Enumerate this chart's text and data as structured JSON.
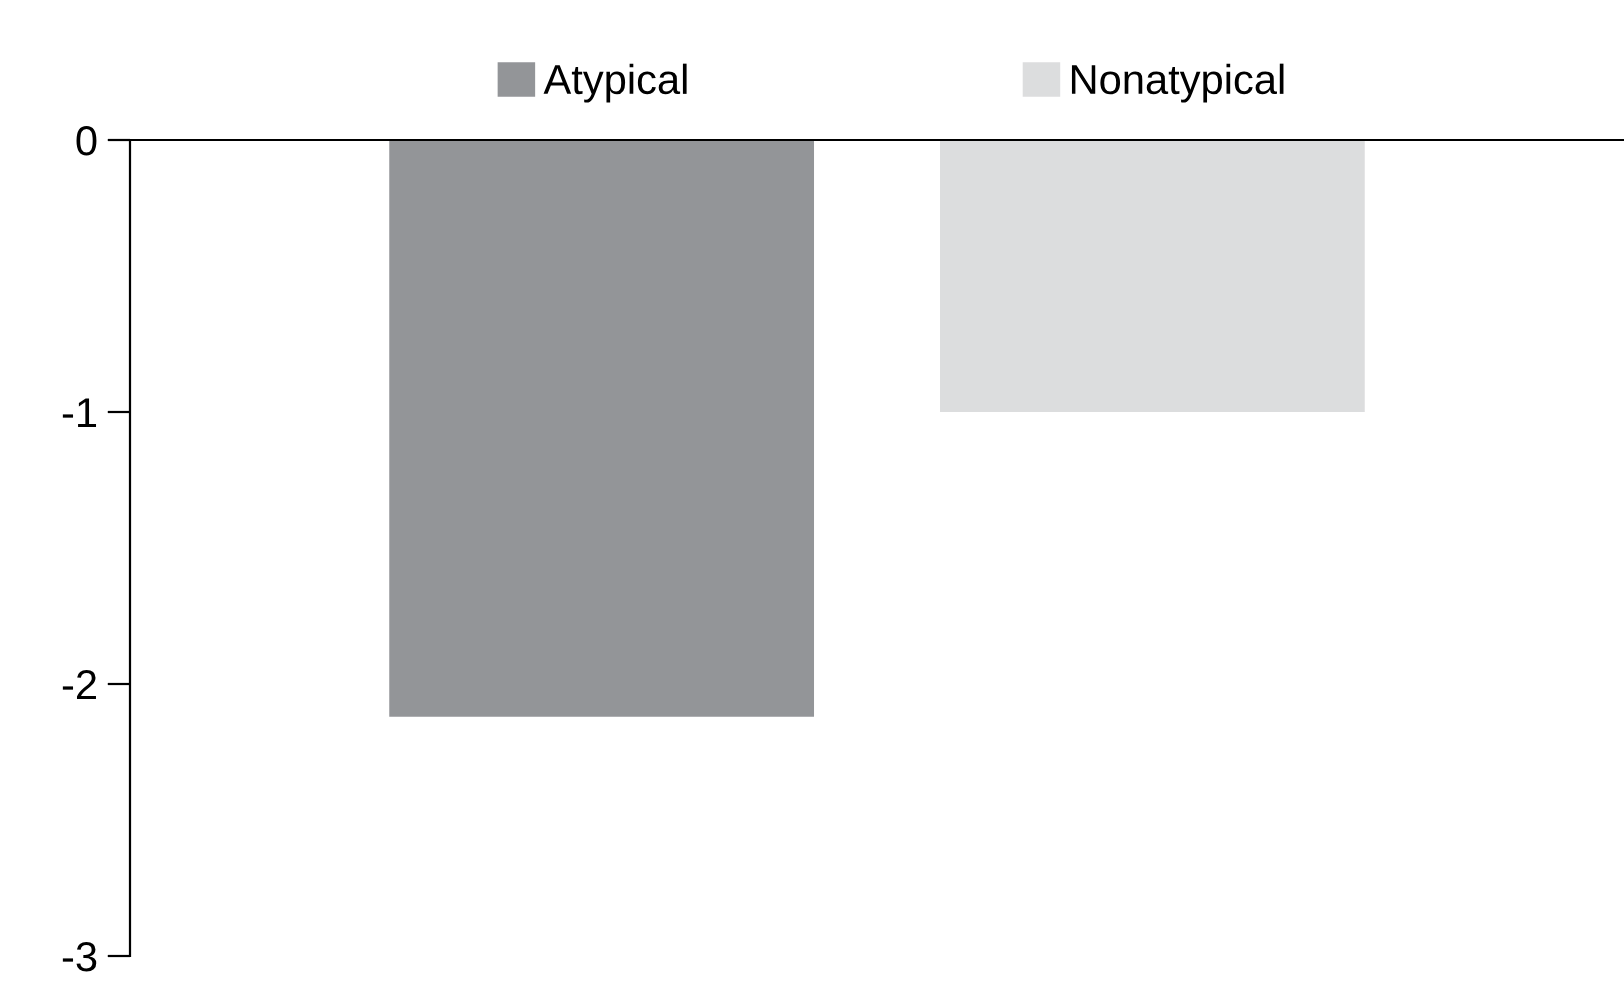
{
  "chart_data": {
    "type": "bar",
    "categories": [
      null
    ],
    "series": [
      {
        "name": "Atypical",
        "color": "#939598",
        "values": [
          -2.12
        ]
      },
      {
        "name": "Nonatypical",
        "color": "#dcddde",
        "values": [
          -1.0
        ]
      }
    ],
    "ylim": [
      -3,
      0
    ],
    "yticks": [
      -3,
      -2,
      -1,
      0
    ],
    "grid": false,
    "legend": "top"
  }
}
